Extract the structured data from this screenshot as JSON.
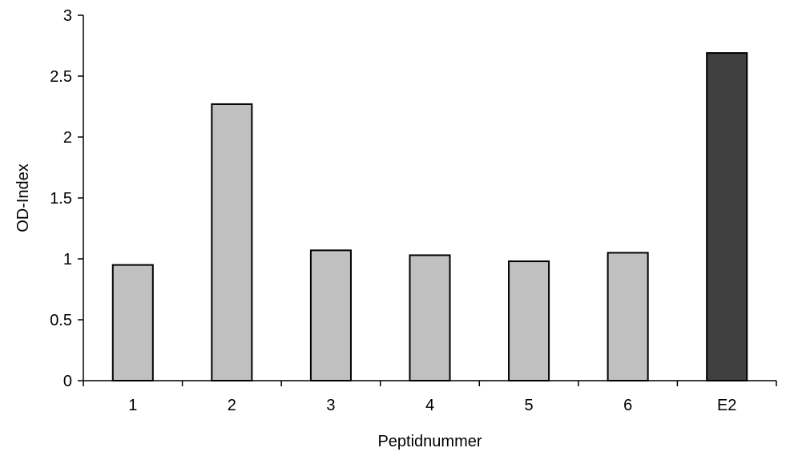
{
  "chart_data": {
    "type": "bar",
    "categories": [
      "1",
      "2",
      "3",
      "4",
      "5",
      "6",
      "E2"
    ],
    "values": [
      0.95,
      2.27,
      1.07,
      1.03,
      0.98,
      1.05,
      2.69
    ],
    "bar_colors": [
      "#c0c0c0",
      "#c0c0c0",
      "#c0c0c0",
      "#c0c0c0",
      "#c0c0c0",
      "#c0c0c0",
      "#404040"
    ],
    "title": "",
    "xlabel": "Peptidnummer",
    "ylabel": "OD-Index",
    "ylim": [
      0,
      3
    ],
    "yticks": [
      "0",
      "0.5",
      "1",
      "1.5",
      "2",
      "2.5",
      "3"
    ],
    "grid": false,
    "legend": "none"
  }
}
